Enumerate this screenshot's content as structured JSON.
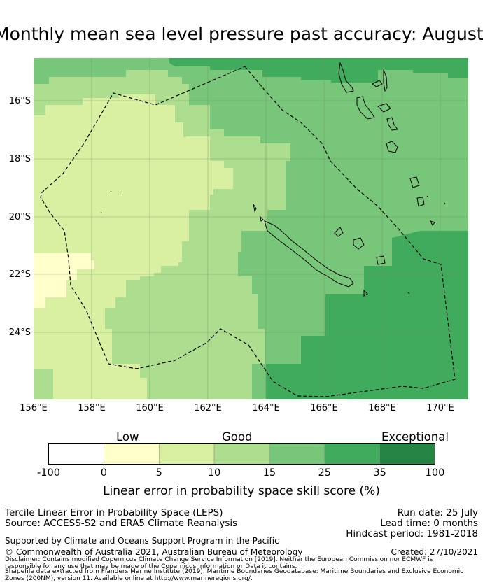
{
  "title": "Monthly mean sea level pressure past accuracy: August",
  "map": {
    "lon_range": [
      156,
      171
    ],
    "lat_range": [
      -26.2,
      -14.3
    ],
    "x_ticks": [
      "156°E",
      "158°E",
      "160°E",
      "162°E",
      "164°E",
      "166°E",
      "168°E",
      "170°E"
    ],
    "y_ticks": [
      "16°S",
      "18°S",
      "20°S",
      "22°S",
      "24°S"
    ],
    "grid": true,
    "region": "New Caledonia EEZ (dashed outline)"
  },
  "legend": {
    "categories": [
      {
        "label": "Low"
      },
      {
        "label": "Good"
      },
      {
        "label": "Exceptional"
      }
    ],
    "ticks": [
      "-100",
      "0",
      "5",
      "10",
      "15",
      "25",
      "35",
      "100"
    ],
    "colors": [
      "#ffffff",
      "#ffffcc",
      "#d9f0a3",
      "#addd8e",
      "#78c679",
      "#41ab5d",
      "#238443"
    ],
    "title": "Linear error in probability space skill score (%)"
  },
  "footer": {
    "line1_left": "Tercile Linear Error in Probability Space (LEPS)",
    "line2_left": "Source: ACCESS-S2 and ERA5 Climate Reanalysis",
    "run_date": "Run date: 25 July",
    "lead_time": "Lead time: 0 months",
    "hindcast": "Hindcast period: 1981-2018",
    "support": "Supported by Climate and Oceans Support Program in the Pacific",
    "copyright": "© Commonwealth of Australia 2021, Australian Bureau of Meteorology",
    "created": "Created: 27/10/2021",
    "disclaimer1": "Disclaimer: Contains modified Copernicus Climate Change Service Information [2019]. Neither the European Commission nor ECMWF is",
    "disclaimer2": "responsible for any use that may be made of the Copernicus Information or Data it contains.",
    "disclaimer3": "Shapefile data extracted from Flanders Marine Institute (2019). Maritime Boundaries Geodatabase: Maritime Boundaries and Exclusive Economic",
    "disclaimer4": "Zones (200NM), version 11. Available online at http://www.marineregions.org/."
  }
}
